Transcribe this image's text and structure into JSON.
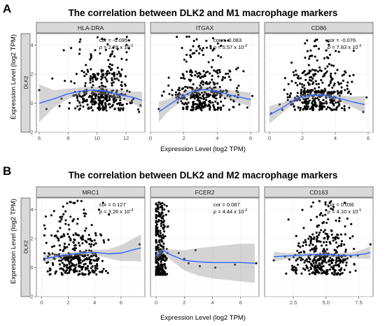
{
  "figure": {
    "xlabel": "Expression Level (log2 TPM)",
    "ylabel": "Expression Level (log2 TPM)",
    "ylabel_inner": "DLK2"
  },
  "chart_data": [
    {
      "panel_letter": "A",
      "title": "The correlation between DLK2 and M1 macrophage markers",
      "type": "scatter",
      "ylim": [
        -2,
        4.8
      ],
      "yticks": [
        -2,
        0,
        2,
        4
      ],
      "facets": [
        {
          "name": "HLA-DRA",
          "xlim": [
            5.8,
            13.3
          ],
          "xticks": [
            6,
            8,
            10,
            12
          ],
          "tick_labels": [
            "6",
            "8",
            "10",
            "12"
          ],
          "cor": "-0.095",
          "p": "2.78 x 10",
          "p_exp": "-2",
          "x_range": [
            6.3,
            13.0
          ],
          "x_center": 10.3,
          "x_spread": 1.3,
          "n": 360,
          "seed": 11,
          "fit": [
            [
              6.0,
              0.0
            ],
            [
              7.0,
              0.3
            ],
            [
              8.0,
              0.65
            ],
            [
              9.0,
              0.85
            ],
            [
              9.6,
              0.9
            ],
            [
              10.5,
              0.85
            ],
            [
              11.5,
              0.6
            ],
            [
              12.5,
              0.4
            ],
            [
              13.1,
              0.2
            ]
          ],
          "band": [
            1.3,
            0.6,
            0.35,
            0.25,
            0.25,
            0.25,
            0.3,
            0.4,
            0.6
          ],
          "outliers": [
            [
              6.0,
              0.9
            ],
            [
              6.5,
              -0.4
            ],
            [
              6.9,
              1.7
            ],
            [
              7.4,
              -0.2
            ],
            [
              8.2,
              1.5
            ],
            [
              12.9,
              -0.6
            ]
          ]
        },
        {
          "name": "ITGAX",
          "xlim": [
            0,
            6.5
          ],
          "xticks": [
            0,
            2,
            4,
            6
          ],
          "tick_labels": [
            "0",
            "2",
            "4",
            "6"
          ],
          "cor": "-0.083",
          "p": "5.57 x 10",
          "p_exp": "-2",
          "x_range": [
            0.5,
            6.3
          ],
          "x_center": 3.2,
          "x_spread": 1.2,
          "n": 360,
          "seed": 23,
          "fit": [
            [
              0.5,
              -0.6
            ],
            [
              1.0,
              -0.2
            ],
            [
              1.8,
              0.4
            ],
            [
              2.5,
              0.8
            ],
            [
              3.2,
              0.95
            ],
            [
              4.0,
              0.8
            ],
            [
              5.0,
              0.5
            ],
            [
              6.0,
              0.25
            ]
          ],
          "band": [
            0.7,
            0.45,
            0.3,
            0.22,
            0.2,
            0.25,
            0.35,
            0.5
          ],
          "outliers": [
            [
              0.5,
              -0.4
            ],
            [
              0.8,
              0.8
            ],
            [
              5.8,
              -0.3
            ],
            [
              6.1,
              0.5
            ]
          ]
        },
        {
          "name": "CD86",
          "xlim": [
            -0.3,
            6.3
          ],
          "xticks": [
            0,
            2,
            4,
            6
          ],
          "tick_labels": [
            "0",
            "2",
            "4",
            "6"
          ],
          "cor": "-0.076",
          "p": "7.83 x 10",
          "p_exp": "-2",
          "x_range": [
            0.0,
            6.0
          ],
          "x_center": 2.9,
          "x_spread": 1.2,
          "n": 380,
          "seed": 37,
          "fit": [
            [
              0.0,
              -0.8
            ],
            [
              0.8,
              -0.3
            ],
            [
              1.6,
              0.3
            ],
            [
              2.5,
              0.55
            ],
            [
              3.3,
              0.55
            ],
            [
              4.2,
              0.35
            ],
            [
              5.0,
              0.1
            ],
            [
              5.8,
              -0.1
            ]
          ],
          "band": [
            0.6,
            0.35,
            0.2,
            0.15,
            0.15,
            0.2,
            0.35,
            0.6
          ],
          "outliers": [
            [
              0.1,
              -0.7
            ],
            [
              5.7,
              -0.6
            ],
            [
              5.9,
              0.4
            ]
          ]
        }
      ]
    },
    {
      "panel_letter": "B",
      "title": "The correlation between DLK2 and M2 macrophage markers",
      "type": "scatter",
      "ylim": [
        -2,
        4.8
      ],
      "yticks": [
        -2,
        0,
        2,
        4
      ],
      "facets": [
        {
          "name": "MRC1",
          "xlim": [
            -0.4,
            7.8
          ],
          "xticks": [
            0,
            2,
            4,
            6
          ],
          "tick_labels": [
            "0",
            "2",
            "4",
            "6"
          ],
          "cor": "0.127",
          "p": "3.26 x 10",
          "p_exp": "-3",
          "x_range": [
            0.2,
            6.2
          ],
          "x_center": 2.5,
          "x_spread": 1.4,
          "n": 360,
          "seed": 51,
          "fit": [
            [
              0.2,
              0.6
            ],
            [
              1.0,
              0.75
            ],
            [
              2.0,
              0.9
            ],
            [
              3.0,
              1.0
            ],
            [
              4.0,
              1.05
            ],
            [
              5.0,
              0.95
            ],
            [
              6.0,
              1.0
            ],
            [
              7.0,
              1.25
            ],
            [
              7.5,
              1.35
            ]
          ],
          "band": [
            0.3,
            0.2,
            0.15,
            0.15,
            0.18,
            0.3,
            0.55,
            0.8,
            0.95
          ],
          "outliers": [
            [
              7.4,
              1.6
            ]
          ]
        },
        {
          "name": "FCER2",
          "xlim": [
            -0.4,
            7.3
          ],
          "xticks": [
            0,
            2,
            4,
            6
          ],
          "tick_labels": [
            "0",
            "2",
            "4",
            "6"
          ],
          "cor": "0.087",
          "p": "4.44 x 10",
          "p_exp": "-2",
          "x_range": [
            0.0,
            1.3
          ],
          "x_center": 0.25,
          "x_spread": 0.35,
          "n": 300,
          "seed": 67,
          "fit": [
            [
              0.0,
              0.8
            ],
            [
              0.5,
              1.2
            ],
            [
              1.0,
              0.9
            ],
            [
              2.0,
              0.5
            ],
            [
              3.0,
              0.4
            ],
            [
              4.0,
              0.35
            ],
            [
              5.0,
              0.35
            ],
            [
              6.0,
              0.35
            ],
            [
              7.0,
              0.3
            ]
          ],
          "band": [
            0.25,
            0.2,
            0.35,
            0.7,
            0.95,
            1.1,
            1.2,
            1.3,
            1.35
          ],
          "outliers": [
            [
              1.6,
              1.0
            ],
            [
              2.0,
              0.6
            ],
            [
              2.3,
              0.3
            ],
            [
              2.8,
              1.2
            ],
            [
              3.1,
              0.1
            ],
            [
              4.2,
              0.0
            ],
            [
              5.6,
              0.2
            ],
            [
              7.1,
              0.3
            ]
          ]
        },
        {
          "name": "CD163",
          "xlim": [
            0.3,
            8.6
          ],
          "xticks": [
            2.5,
            5.0,
            7.5
          ],
          "tick_labels": [
            "2.5",
            "5.0",
            "7.5"
          ],
          "cor": "0.036",
          "p": "4.10 x 10",
          "p_exp": "-1",
          "x_range": [
            1.0,
            8.2
          ],
          "x_center": 4.8,
          "x_spread": 1.4,
          "n": 380,
          "seed": 83,
          "fit": [
            [
              1.0,
              0.75
            ],
            [
              2.0,
              0.8
            ],
            [
              3.0,
              0.85
            ],
            [
              4.0,
              0.9
            ],
            [
              5.0,
              0.9
            ],
            [
              6.0,
              0.85
            ],
            [
              7.0,
              0.85
            ],
            [
              8.0,
              0.95
            ],
            [
              8.4,
              1.05
            ]
          ],
          "band": [
            0.35,
            0.2,
            0.15,
            0.15,
            0.15,
            0.15,
            0.2,
            0.35,
            0.45
          ],
          "outliers": [
            [
              8.4,
              1.6
            ],
            [
              1.0,
              0.5
            ]
          ]
        }
      ]
    }
  ]
}
